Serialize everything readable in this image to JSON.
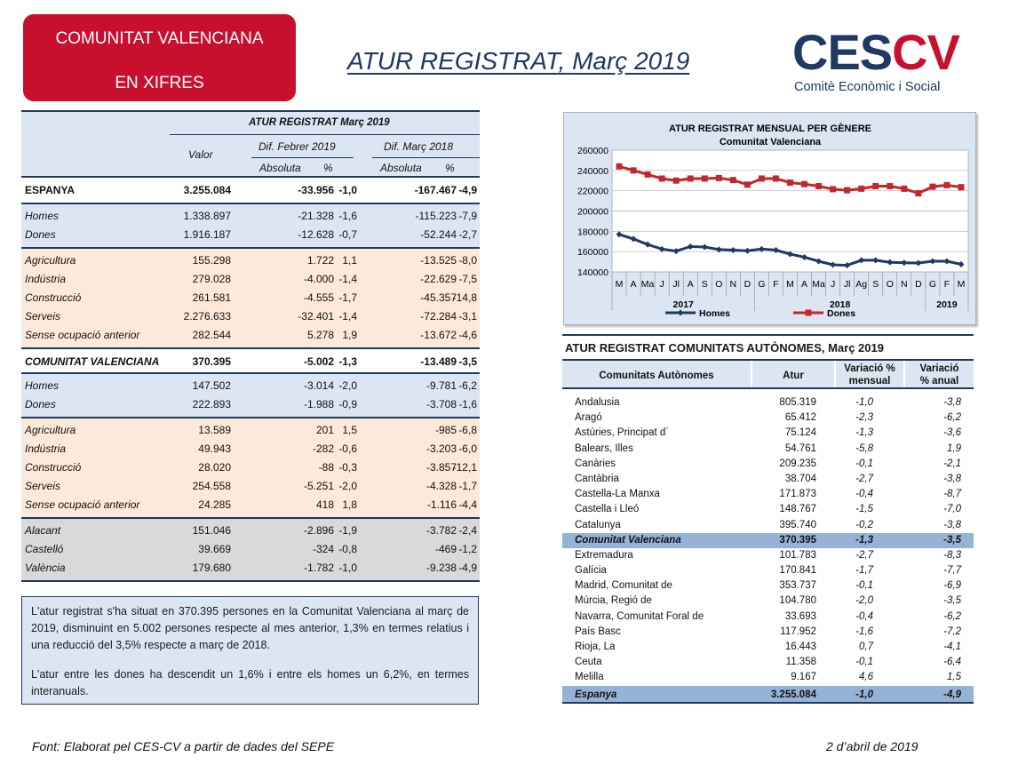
{
  "header": {
    "badge_line1": "COMUNITAT VALENCIANA",
    "badge_line2": "EN XIFRES",
    "title": "ATUR REGISTRAT, Març 2019",
    "logo_text_ce": "CES",
    "logo_text_cv": "CV",
    "logo_subtitle": "Comitè Econòmic i Social",
    "brand_red": "#c8102e",
    "brand_navy": "#1f3864"
  },
  "left_table": {
    "title": "ATUR REGISTRAT Març 2019",
    "col_valor": "Valor",
    "dif_febrer": "Dif. Febrer 2019",
    "dif_marc": "Dif. Març 2018",
    "absoluta": "Absoluta",
    "pct": "%",
    "espanya": {
      "label": "ESPANYA",
      "valor": "3.255.084",
      "abs1": "-33.956",
      "pct1": "-1,0",
      "abs2": "-167.467",
      "pct2": "-4,9"
    },
    "espanya_sexe": [
      {
        "label": "Homes",
        "valor": "1.338.897",
        "abs1": "-21.328",
        "pct1": "-1,6",
        "abs2": "-115.223",
        "pct2": "-7,9"
      },
      {
        "label": "Dones",
        "valor": "1.916.187",
        "abs1": "-12.628",
        "pct1": "-0,7",
        "abs2": "-52.244",
        "pct2": "-2,7"
      }
    ],
    "espanya_sector": [
      {
        "label": "Agricultura",
        "valor": "155.298",
        "abs1": "1.722",
        "pct1": "1,1",
        "abs2": "-13.525",
        "pct2": "-8,0"
      },
      {
        "label": "Indústria",
        "valor": "279.028",
        "abs1": "-4.000",
        "pct1": "-1,4",
        "abs2": "-22.629",
        "pct2": "-7,5"
      },
      {
        "label": "Construcció",
        "valor": "261.581",
        "abs1": "-4.555",
        "pct1": "-1,7",
        "abs2": "-45.357",
        "pct2": "-14,8"
      },
      {
        "label": "Serveis",
        "valor": "2.276.633",
        "abs1": "-32.401",
        "pct1": "-1,4",
        "abs2": "-72.284",
        "pct2": "-3,1"
      },
      {
        "label": "Sense ocupació anterior",
        "valor": "282.544",
        "abs1": "5.278",
        "pct1": "1,9",
        "abs2": "-13.672",
        "pct2": "-4,6"
      }
    ],
    "cv": {
      "label": "COMUNITAT VALENCIANA",
      "valor": "370.395",
      "abs1": "-5.002",
      "pct1": "-1,3",
      "abs2": "-13.489",
      "pct2": "-3,5"
    },
    "cv_sexe": [
      {
        "label": "Homes",
        "valor": "147.502",
        "abs1": "-3.014",
        "pct1": "-2,0",
        "abs2": "-9.781",
        "pct2": "-6,2"
      },
      {
        "label": "Dones",
        "valor": "222.893",
        "abs1": "-1.988",
        "pct1": "-0,9",
        "abs2": "-3.708",
        "pct2": "-1,6"
      }
    ],
    "cv_sector": [
      {
        "label": "Agricultura",
        "valor": "13.589",
        "abs1": "201",
        "pct1": "1,5",
        "abs2": "-985",
        "pct2": "-6,8"
      },
      {
        "label": "Indústria",
        "valor": "49.943",
        "abs1": "-282",
        "pct1": "-0,6",
        "abs2": "-3.203",
        "pct2": "-6,0"
      },
      {
        "label": "Construcció",
        "valor": "28.020",
        "abs1": "-88",
        "pct1": "-0,3",
        "abs2": "-3.857",
        "pct2": "-12,1"
      },
      {
        "label": "Serveis",
        "valor": "254.558",
        "abs1": "-5.251",
        "pct1": "-2,0",
        "abs2": "-4.328",
        "pct2": "-1,7"
      },
      {
        "label": "Sense ocupació anterior",
        "valor": "24.285",
        "abs1": "418",
        "pct1": "1,8",
        "abs2": "-1.116",
        "pct2": "-4,4"
      }
    ],
    "provincies": [
      {
        "label": "Alacant",
        "valor": "151.046",
        "abs1": "-2.896",
        "pct1": "-1,9",
        "abs2": "-3.782",
        "pct2": "-2,4"
      },
      {
        "label": "Castelló",
        "valor": "39.669",
        "abs1": "-324",
        "pct1": "-0,8",
        "abs2": "-469",
        "pct2": "-1,2"
      },
      {
        "label": "València",
        "valor": "179.680",
        "abs1": "-1.782",
        "pct1": "-1,0",
        "abs2": "-9.238",
        "pct2": "-4,9"
      }
    ]
  },
  "summary": {
    "p1": "L'atur registrat s'ha situat en 370.395 persones en la Comunitat Valenciana al març de 2019, disminuint en 5.002 persones respecte al mes anterior, 1,3% en termes relatius i una reducció del 3,5% respecte a març de 2018.",
    "p2": "L'atur entre les dones ha descendit un 1,6% i entre els homes un 6,2%, en termes interanuals."
  },
  "chart_data": {
    "type": "line",
    "title": "ATUR REGISTRAT MENSUAL PER GÈNERE",
    "subtitle": "Comunitat Valenciana",
    "x": [
      "M",
      "A",
      "Ma",
      "J",
      "Jl",
      "A",
      "S",
      "O",
      "N",
      "D",
      "G",
      "F",
      "M",
      "A",
      "Ma",
      "J",
      "Jl",
      "Ag",
      "S",
      "O",
      "N",
      "D",
      "G",
      "F",
      "M"
    ],
    "year_labels": [
      "2017",
      "2018",
      "2019"
    ],
    "ylim": [
      140000,
      260000
    ],
    "yticks": [
      "140000",
      "160000",
      "180000",
      "200000",
      "220000",
      "240000",
      "260000"
    ],
    "grid": true,
    "legend_position": "bottom",
    "series": [
      {
        "name": "Homes",
        "color": "#1f3864",
        "values": [
          177000,
          172500,
          167000,
          162500,
          160500,
          165000,
          164500,
          162000,
          161500,
          160800,
          162500,
          161500,
          157500,
          154500,
          150500,
          147000,
          146500,
          151500,
          151500,
          149500,
          149000,
          148800,
          150500,
          150500,
          147500
        ]
      },
      {
        "name": "Dones",
        "color": "#c0282e",
        "values": [
          244000,
          240000,
          236000,
          232000,
          230000,
          232000,
          232000,
          232500,
          230500,
          226000,
          232000,
          232000,
          228000,
          226500,
          224500,
          221500,
          220500,
          222000,
          224500,
          224500,
          222000,
          217500,
          224000,
          225500,
          223500
        ]
      }
    ]
  },
  "right_table": {
    "title": "ATUR REGISTRAT COMUNITATS AUTÒNOMES, Març 2019",
    "h_ca": "Comunitats Autònomes",
    "h_atur": "Atur",
    "h_var_m1": "Variació %",
    "h_var_m2": "mensual",
    "h_var_a1": "Variació",
    "h_var_a2": "% anual",
    "rows": [
      {
        "n": "Andalusia",
        "v": "805.319",
        "m": "-1,0",
        "a": "-3,8"
      },
      {
        "n": "Aragó",
        "v": "65.412",
        "m": "-2,3",
        "a": "-6,2"
      },
      {
        "n": "Astúries, Principat d´",
        "v": "75.124",
        "m": "-1,3",
        "a": "-3,6"
      },
      {
        "n": "Balears, Illes",
        "v": "54.761",
        "m": "-5,8",
        "a": "1,9"
      },
      {
        "n": "Canàries",
        "v": "209.235",
        "m": "-0,1",
        "a": "-2,1"
      },
      {
        "n": "Cantàbria",
        "v": "38.704",
        "m": "-2,7",
        "a": "-3,8"
      },
      {
        "n": "Castella-La Manxa",
        "v": "171.873",
        "m": "-0,4",
        "a": "-8,7"
      },
      {
        "n": "Castella i Lleó",
        "v": "148.767",
        "m": "-1,5",
        "a": "-7,0"
      },
      {
        "n": "Catalunya",
        "v": "395.740",
        "m": "-0,2",
        "a": "-3,8"
      },
      {
        "n": "Comunitat Valenciana",
        "v": "370.395",
        "m": "-1,3",
        "a": "-3,5",
        "hl": true
      },
      {
        "n": "Extremadura",
        "v": "101.783",
        "m": "-2,7",
        "a": "-8,3"
      },
      {
        "n": "Galícia",
        "v": "170.841",
        "m": "-1,7",
        "a": "-7,7"
      },
      {
        "n": "Madrid, Comunitat de",
        "v": "353.737",
        "m": "-0,1",
        "a": "-6,9"
      },
      {
        "n": "Múrcia, Regió de",
        "v": "104.780",
        "m": "-2,0",
        "a": "-3,5"
      },
      {
        "n": "Navarra, Comunitat Foral de",
        "v": "33.693",
        "m": "-0,4",
        "a": "-6,2"
      },
      {
        "n": "País Basc",
        "v": "117.952",
        "m": "-1,6",
        "a": "-7,2"
      },
      {
        "n": "Rioja, La",
        "v": "16.443",
        "m": "0,7",
        "a": "-4,1"
      },
      {
        "n": "Ceuta",
        "v": "11.358",
        "m": "-0,1",
        "a": "-6,4"
      },
      {
        "n": "Melilla",
        "v": "9.167",
        "m": "4,6",
        "a": "1,5"
      }
    ],
    "total": {
      "n": "Espanya",
      "v": "3.255.084",
      "m": "-1,0",
      "a": "-4,9"
    }
  },
  "footer": {
    "source": "Font: Elaborat pel CES-CV a partir de dades del SEPE",
    "date": "2 d’abril de 2019"
  }
}
